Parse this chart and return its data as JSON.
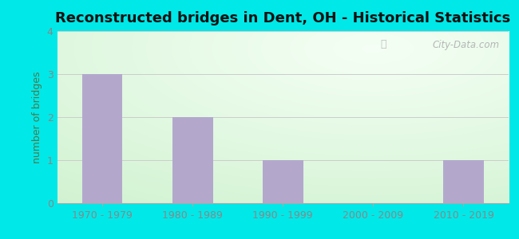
{
  "title": "Reconstructed bridges in Dent, OH - Historical Statistics",
  "categories": [
    "1970 - 1979",
    "1980 - 1989",
    "1990 - 1999",
    "2000 - 2009",
    "2010 - 2019"
  ],
  "values": [
    3,
    2,
    1,
    0,
    1
  ],
  "bar_color": "#b3a8cc",
  "ylabel": "number of bridges",
  "ylim": [
    0,
    4
  ],
  "yticks": [
    0,
    1,
    2,
    3,
    4
  ],
  "background_outer": "#00e8e8",
  "grid_color": "#cccccc",
  "title_fontsize": 13,
  "ylabel_fontsize": 9,
  "tick_fontsize": 9,
  "watermark": "City-Data.com",
  "tick_color": "#888888",
  "label_color": "#555555"
}
